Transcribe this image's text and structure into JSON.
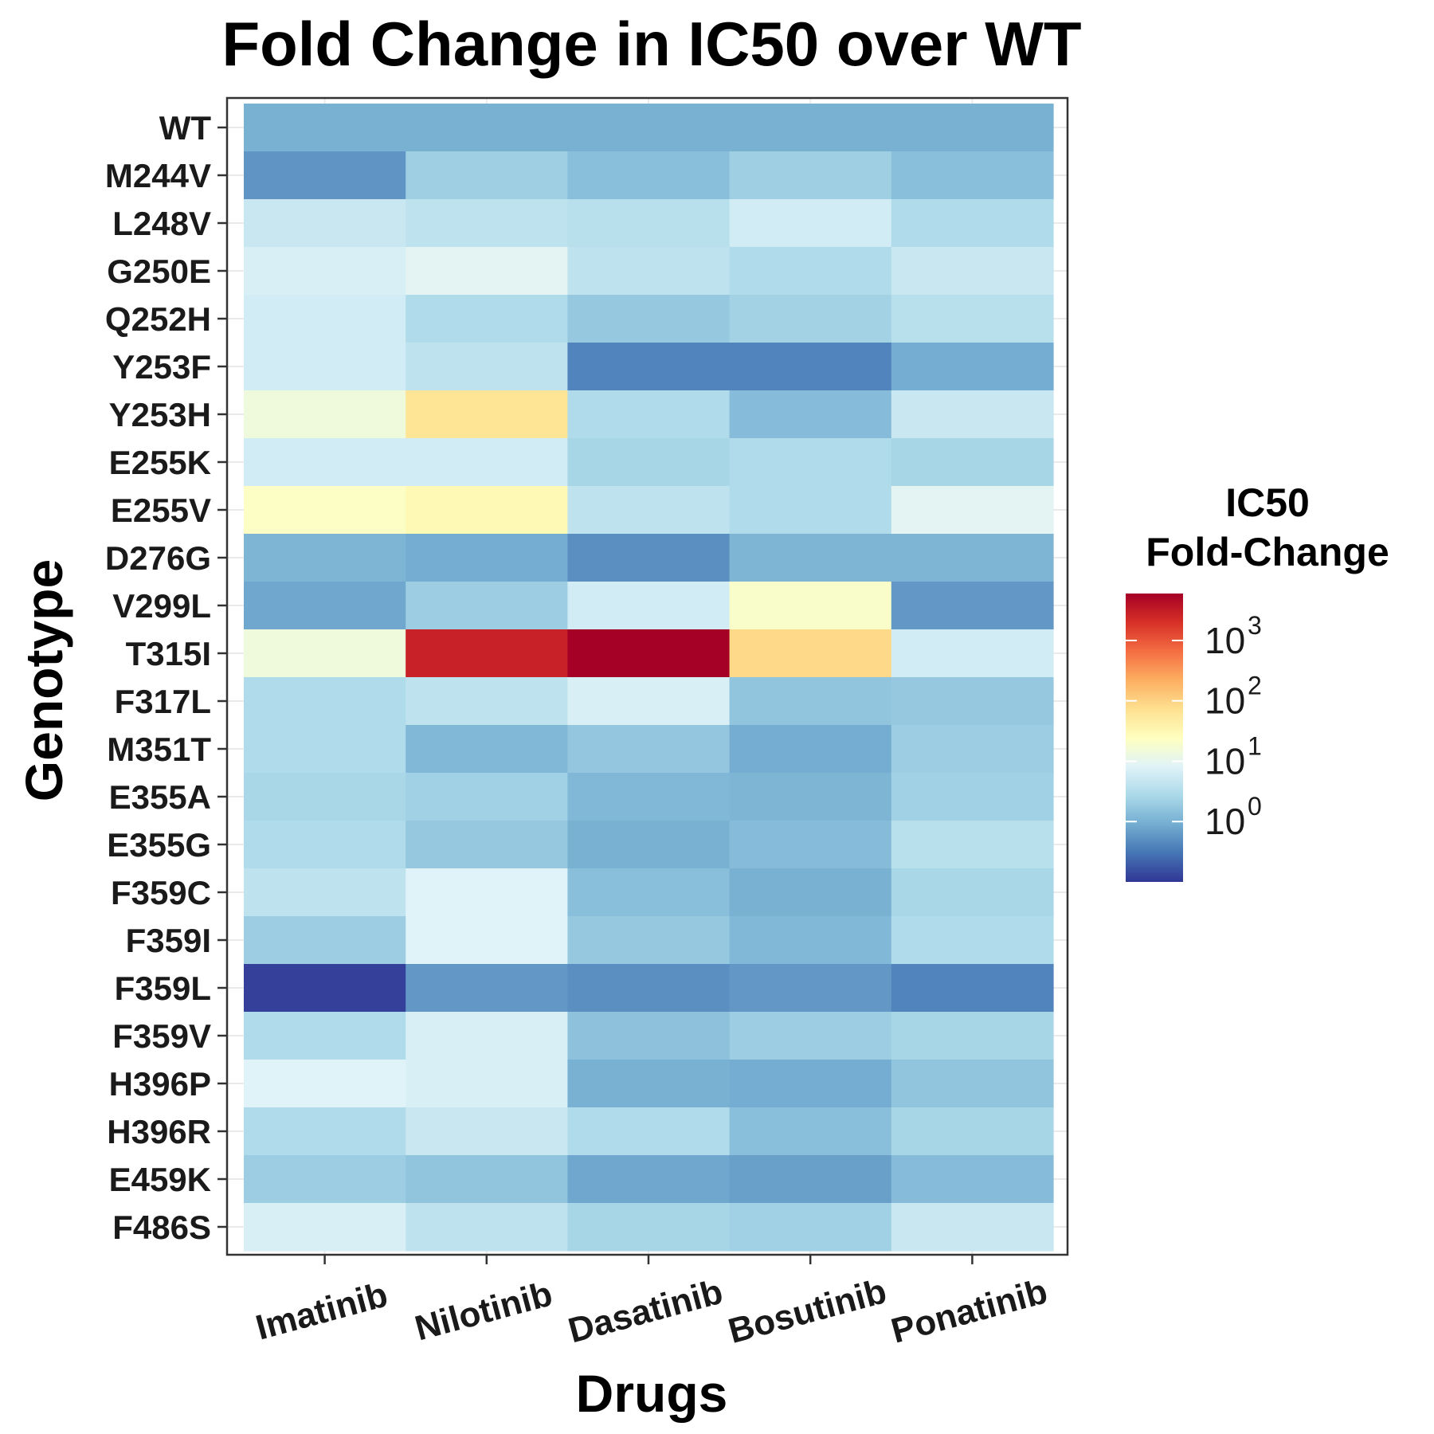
{
  "chart_data": {
    "type": "heatmap",
    "title": "Fold Change in IC50 over WT",
    "xlabel": "Drugs",
    "ylabel": "Genotype",
    "x": [
      "Imatinib",
      "Nilotinib",
      "Dasatinib",
      "Bosutinib",
      "Ponatinib"
    ],
    "y": [
      "WT",
      "M244V",
      "L248V",
      "G250E",
      "Q252H",
      "Y253F",
      "Y253H",
      "E255K",
      "E255V",
      "D276G",
      "V299L",
      "T315I",
      "F317L",
      "M351T",
      "E355A",
      "E355G",
      "F359C",
      "F359I",
      "F359L",
      "F359V",
      "H396P",
      "H396R",
      "E459K",
      "F486S"
    ],
    "values": [
      [
        1,
        1,
        1,
        1,
        1
      ],
      [
        0.55,
        2.1,
        1.4,
        2.1,
        1.4
      ],
      [
        5,
        4,
        3.5,
        6,
        3
      ],
      [
        7,
        9,
        4,
        3,
        5
      ],
      [
        6,
        3,
        1.8,
        2.3,
        3.5
      ],
      [
        6,
        4,
        0.4,
        0.4,
        0.9
      ],
      [
        14,
        65,
        3,
        1.3,
        5
      ],
      [
        6,
        6,
        2.5,
        3,
        2.5
      ],
      [
        22,
        30,
        4,
        3,
        9
      ],
      [
        1.1,
        0.9,
        0.5,
        1.1,
        1.1
      ],
      [
        0.8,
        2,
        6,
        20,
        0.6
      ],
      [
        14,
        2800,
        6000,
        85,
        6
      ],
      [
        3,
        4,
        7,
        1.6,
        1.8
      ],
      [
        3,
        1.2,
        1.7,
        0.9,
        2
      ],
      [
        2.6,
        2.2,
        1.2,
        1.1,
        2.2
      ],
      [
        3,
        1.8,
        1,
        1.3,
        3.5
      ],
      [
        4,
        8,
        1.4,
        1,
        2.6
      ],
      [
        2,
        8,
        1.8,
        1.2,
        3
      ],
      [
        0.12,
        0.6,
        0.5,
        0.6,
        0.4
      ],
      [
        3,
        7,
        1.5,
        2,
        2.5
      ],
      [
        8,
        7,
        1,
        0.9,
        1.6
      ],
      [
        3,
        5,
        3,
        1.4,
        2.5
      ],
      [
        2,
        1.6,
        0.8,
        0.7,
        1.3
      ],
      [
        7,
        4,
        2.5,
        2.2,
        5
      ]
    ],
    "color_scale": {
      "type": "log10",
      "domain": [
        0.1,
        6000
      ],
      "palette": [
        "#313695",
        "#4575b4",
        "#74add1",
        "#abd9e9",
        "#e0f3f8",
        "#ffffbf",
        "#fee090",
        "#fdae61",
        "#f46d43",
        "#d73027",
        "#a50026"
      ]
    },
    "legend": {
      "title_lines": [
        "IC50",
        "Fold-Change"
      ],
      "ticks": [
        {
          "value": 1,
          "base": "10",
          "exp": "0"
        },
        {
          "value": 10,
          "base": "10",
          "exp": "1"
        },
        {
          "value": 100,
          "base": "10",
          "exp": "2"
        },
        {
          "value": 1000,
          "base": "10",
          "exp": "3"
        }
      ],
      "placement": "right"
    },
    "grid": true
  }
}
